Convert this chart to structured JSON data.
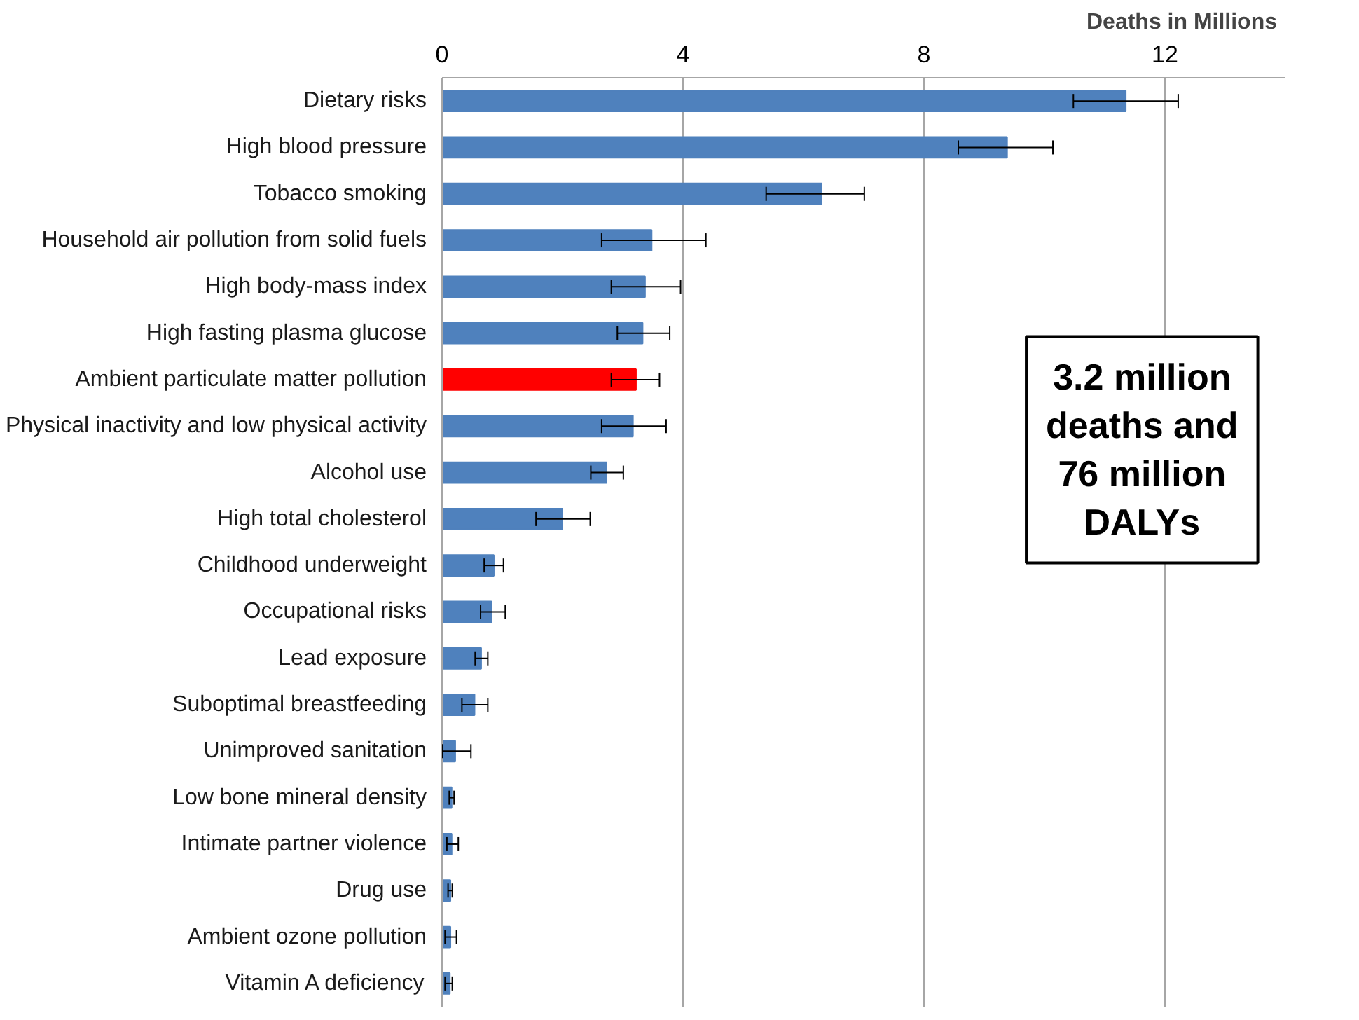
{
  "chart_data": {
    "type": "bar",
    "orientation": "horizontal",
    "xlabel": "Deaths in Millions",
    "categories": [
      "Dietary risks",
      "High blood pressure",
      "Tobacco smoking",
      "Household air pollution from solid fuels",
      "High body-mass index",
      "High fasting plasma glucose",
      "Ambient particulate matter pollution",
      "Physical inactivity and low physical activity",
      "Alcohol use",
      "High total cholesterol",
      "Childhood underweight",
      "Occupational risks",
      "Lead exposure",
      "Suboptimal breastfeeding",
      "Unimproved sanitation",
      "Low bone mineral density",
      "Intimate partner violence",
      "Drug use",
      "Ambient ozone pollution",
      "Vitamin A deficiency"
    ],
    "values": [
      11.35,
      9.38,
      6.3,
      3.48,
      3.37,
      3.33,
      3.22,
      3.17,
      2.73,
      2.0,
      0.86,
      0.82,
      0.65,
      0.54,
      0.22,
      0.16,
      0.16,
      0.14,
      0.14,
      0.13
    ],
    "errors": [
      [
        10.48,
        12.22
      ],
      [
        8.57,
        10.14
      ],
      [
        5.38,
        7.01
      ],
      [
        2.65,
        4.38
      ],
      [
        2.81,
        3.96
      ],
      [
        2.91,
        3.78
      ],
      [
        2.81,
        3.61
      ],
      [
        2.65,
        3.72
      ],
      [
        2.47,
        3.01
      ],
      [
        1.56,
        2.46
      ],
      [
        0.7,
        1.02
      ],
      [
        0.64,
        1.05
      ],
      [
        0.55,
        0.76
      ],
      [
        0.33,
        0.76
      ],
      [
        0.0,
        0.48
      ],
      [
        0.12,
        0.2
      ],
      [
        0.08,
        0.27
      ],
      [
        0.1,
        0.17
      ],
      [
        0.05,
        0.24
      ],
      [
        0.05,
        0.17
      ]
    ],
    "colors": [
      "#4f81bd",
      "#4f81bd",
      "#4f81bd",
      "#4f81bd",
      "#4f81bd",
      "#4f81bd",
      "#ff0000",
      "#4f81bd",
      "#4f81bd",
      "#4f81bd",
      "#4f81bd",
      "#4f81bd",
      "#4f81bd",
      "#4f81bd",
      "#4f81bd",
      "#4f81bd",
      "#4f81bd",
      "#4f81bd",
      "#4f81bd",
      "#4f81bd"
    ],
    "xlim": [
      0,
      14
    ],
    "xticks": [
      0,
      4,
      8,
      12
    ],
    "grid": "x",
    "annotations": [
      "3.2 million\ndeaths and\n76 million\nDALYs"
    ]
  }
}
